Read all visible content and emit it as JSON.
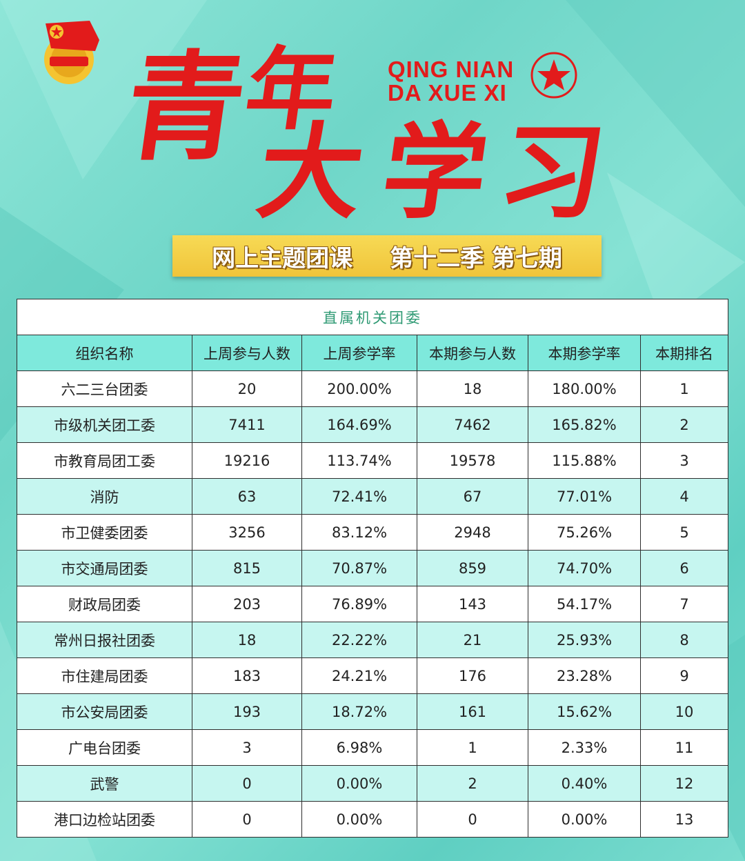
{
  "header": {
    "title_cn": "青年大学习",
    "title_chars": [
      "青",
      "年",
      "大",
      "学",
      "习"
    ],
    "pinyin_line1": "QING NIAN",
    "pinyin_line2": "DA XUE XI",
    "emblem_text": "中国共青团"
  },
  "banner": {
    "left": "网上主题团课",
    "right": "第十二季 第七期"
  },
  "table": {
    "caption": "直属机关团委",
    "columns": [
      "组织名称",
      "上周参与人数",
      "上周参学率",
      "本期参与人数",
      "本期参学率",
      "本期排名"
    ],
    "rows": [
      [
        "六二三台团委",
        "20",
        "200.00%",
        "18",
        "180.00%",
        "1"
      ],
      [
        "市级机关团工委",
        "7411",
        "164.69%",
        "7462",
        "165.82%",
        "2"
      ],
      [
        "市教育局团工委",
        "19216",
        "113.74%",
        "19578",
        "115.88%",
        "3"
      ],
      [
        "消防",
        "63",
        "72.41%",
        "67",
        "77.01%",
        "4"
      ],
      [
        "市卫健委团委",
        "3256",
        "83.12%",
        "2948",
        "75.26%",
        "5"
      ],
      [
        "市交通局团委",
        "815",
        "70.87%",
        "859",
        "74.70%",
        "6"
      ],
      [
        "财政局团委",
        "203",
        "76.89%",
        "143",
        "54.17%",
        "7"
      ],
      [
        "常州日报社团委",
        "18",
        "22.22%",
        "21",
        "25.93%",
        "8"
      ],
      [
        "市住建局团委",
        "183",
        "24.21%",
        "176",
        "23.28%",
        "9"
      ],
      [
        "市公安局团委",
        "193",
        "18.72%",
        "161",
        "15.62%",
        "10"
      ],
      [
        "广电台团委",
        "3",
        "6.98%",
        "1",
        "2.33%",
        "11"
      ],
      [
        "武警",
        "0",
        "0.00%",
        "2",
        "0.40%",
        "12"
      ],
      [
        "港口边检站团委",
        "0",
        "0.00%",
        "0",
        "0.00%",
        "13"
      ]
    ]
  },
  "colors": {
    "title_red": "#e21b1b",
    "banner_yellow": "#f3cb42",
    "header_row": "#7ee9dc",
    "alt_row": "#c6f6f0",
    "caption_green": "#2f9a74"
  }
}
